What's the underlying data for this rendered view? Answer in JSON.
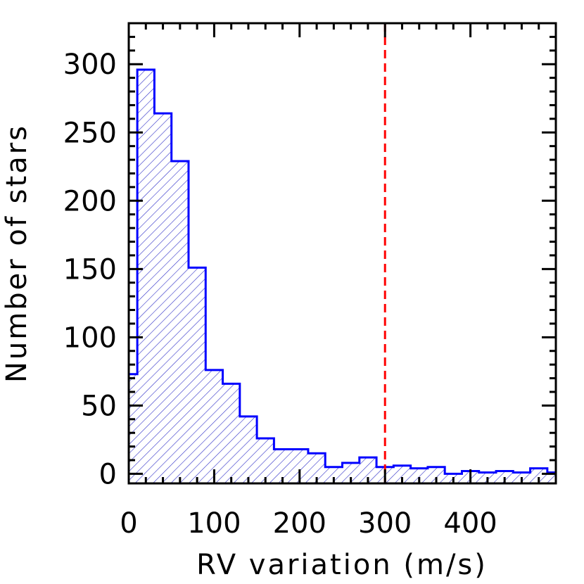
{
  "chart_data": {
    "type": "bar",
    "title": "",
    "xlabel": "RV variation (m/s)",
    "ylabel": "Number of stars",
    "xlim": [
      0,
      500
    ],
    "ylim": [
      -7,
      330
    ],
    "bin_width": 20,
    "bin_edges": [
      -10,
      10,
      30,
      50,
      70,
      90,
      110,
      130,
      150,
      170,
      190,
      210,
      230,
      250,
      270,
      290,
      310,
      330,
      350,
      370,
      390,
      410,
      430,
      450,
      470,
      490,
      510
    ],
    "counts": [
      73,
      296,
      264,
      229,
      151,
      76,
      66,
      42,
      26,
      18,
      18,
      15,
      5,
      8,
      12,
      5,
      6,
      4,
      5,
      0,
      2,
      1,
      2,
      1,
      4,
      1
    ],
    "x_ticks": [
      0,
      100,
      200,
      300,
      400
    ],
    "x_tick_labels": [
      "0",
      "100",
      "200",
      "300",
      "400"
    ],
    "y_ticks": [
      0,
      50,
      100,
      150,
      200,
      250,
      300
    ],
    "y_tick_labels": [
      "0",
      "50",
      "100",
      "150",
      "200",
      "250",
      "300"
    ],
    "threshold_line": {
      "x": 300,
      "style": "dashed",
      "color": "#ff0000"
    },
    "histogram_color": "#0000ff",
    "fill": "diagonal-hatch",
    "grid": false,
    "legend": "none"
  }
}
